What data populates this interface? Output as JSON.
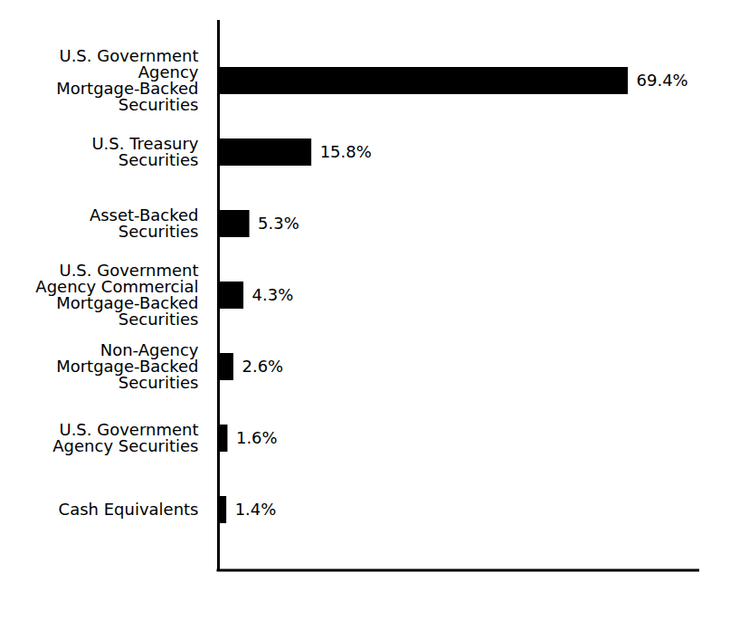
{
  "chart_data": {
    "type": "bar",
    "orientation": "horizontal",
    "categories": [
      "U.S. Government\nAgency\nMortgage-Backed\nSecurities",
      "U.S. Treasury\nSecurities",
      "Asset-Backed\nSecurities",
      "U.S. Government\nAgency Commercial\nMortgage-Backed\nSecurities",
      "Non-Agency\nMortgage-Backed\nSecurities",
      "U.S. Government\nAgency Securities",
      "Cash Equivalents"
    ],
    "values": [
      69.4,
      15.8,
      5.3,
      4.3,
      2.6,
      1.6,
      1.4
    ],
    "value_labels": [
      "69.4%",
      "15.8%",
      "5.3%",
      "4.3%",
      "2.6%",
      "1.6%",
      "1.4%"
    ],
    "color": "#000000",
    "xlim": [
      0,
      81.5
    ],
    "xticks": [],
    "data_labels": true,
    "tick_labels": "y",
    "grid": false
  }
}
